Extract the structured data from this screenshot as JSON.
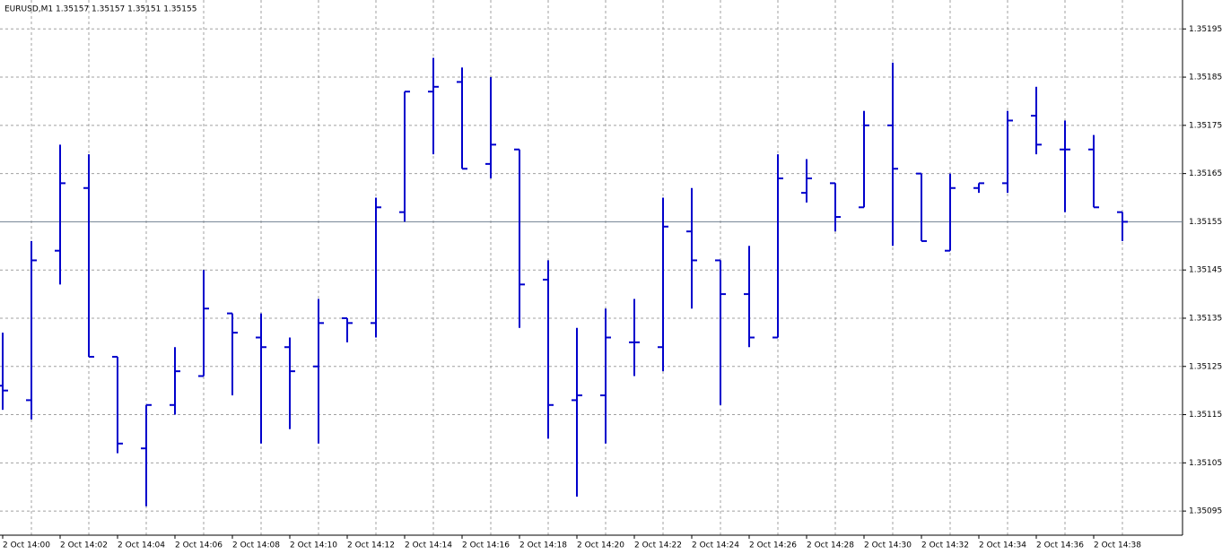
{
  "chart_data": {
    "type": "ohlc",
    "title": "EURUSD,M1 1.35157 1.35157 1.35151 1.35155",
    "color": "#0000cc",
    "categories": [
      "2 Oct 14:00",
      null,
      "2 Oct 14:02",
      null,
      "2 Oct 14:04",
      null,
      "2 Oct 14:06",
      null,
      "2 Oct 14:08",
      null,
      "2 Oct 14:10",
      null,
      "2 Oct 14:12",
      null,
      "2 Oct 14:14",
      null,
      "2 Oct 14:16",
      null,
      "2 Oct 14:18",
      null,
      "2 Oct 14:20",
      null,
      "2 Oct 14:22",
      null,
      "2 Oct 14:24",
      null,
      "2 Oct 14:26",
      null,
      "2 Oct 14:28",
      null,
      "2 Oct 14:30",
      null,
      "2 Oct 14:32",
      null,
      "2 Oct 14:34",
      null,
      "2 Oct 14:36",
      null,
      "2 Oct 14:38",
      null
    ],
    "open": [
      1.35121,
      1.35118,
      1.35149,
      1.35162,
      1.35127,
      1.35108,
      1.35117,
      1.35123,
      1.35136,
      1.35131,
      1.35129,
      1.35125,
      1.35135,
      1.35134,
      1.35157,
      1.35182,
      1.35184,
      1.35167,
      1.3517,
      1.35143,
      1.35118,
      1.35119,
      1.3513,
      1.35129,
      1.35153,
      1.35147,
      1.3514,
      1.35131,
      1.35161,
      1.35163,
      1.35158,
      1.35175,
      1.35165,
      1.35149,
      1.35162,
      1.35163,
      1.35177,
      1.3517,
      1.3517,
      1.35157
    ],
    "high": [
      1.35132,
      1.35151,
      1.35171,
      1.35169,
      1.35127,
      1.35117,
      1.35129,
      1.35145,
      1.35136,
      1.35136,
      1.35131,
      1.35139,
      1.35135,
      1.3516,
      1.35182,
      1.35189,
      1.35187,
      1.35185,
      1.3517,
      1.35147,
      1.35133,
      1.35137,
      1.35139,
      1.3516,
      1.35162,
      1.35147,
      1.3515,
      1.35169,
      1.35168,
      1.35163,
      1.35178,
      1.35188,
      1.35165,
      1.35165,
      1.35163,
      1.35178,
      1.35183,
      1.35176,
      1.35173,
      1.35157
    ],
    "low": [
      1.35116,
      1.35114,
      1.35142,
      1.35127,
      1.35107,
      1.35096,
      1.35115,
      1.35123,
      1.35119,
      1.35109,
      1.35112,
      1.35109,
      1.3513,
      1.35131,
      1.35155,
      1.35169,
      1.35166,
      1.35164,
      1.35133,
      1.3511,
      1.35098,
      1.35109,
      1.35123,
      1.35124,
      1.35137,
      1.35117,
      1.35129,
      1.35131,
      1.35159,
      1.35153,
      1.35158,
      1.3515,
      1.35151,
      1.35149,
      1.35161,
      1.35161,
      1.35169,
      1.35157,
      1.35158,
      1.35151
    ],
    "close": [
      1.3512,
      1.35147,
      1.35163,
      1.35127,
      1.35109,
      1.35117,
      1.35124,
      1.35137,
      1.35132,
      1.35129,
      1.35124,
      1.35134,
      1.35134,
      1.35158,
      1.35182,
      1.35183,
      1.35166,
      1.35171,
      1.35142,
      1.35117,
      1.35119,
      1.35131,
      1.3513,
      1.35154,
      1.35147,
      1.3514,
      1.35131,
      1.35164,
      1.35164,
      1.35156,
      1.35175,
      1.35166,
      1.35151,
      1.35162,
      1.35163,
      1.35176,
      1.35171,
      1.3517,
      1.35158,
      1.35155
    ],
    "current_price": 1.35155,
    "ylim": [
      1.3509,
      1.35201
    ],
    "yticks": [
      1.35195,
      1.35185,
      1.35175,
      1.35165,
      1.35145,
      1.35135,
      1.35125,
      1.35115,
      1.35105,
      1.35095
    ],
    "grid": true
  }
}
